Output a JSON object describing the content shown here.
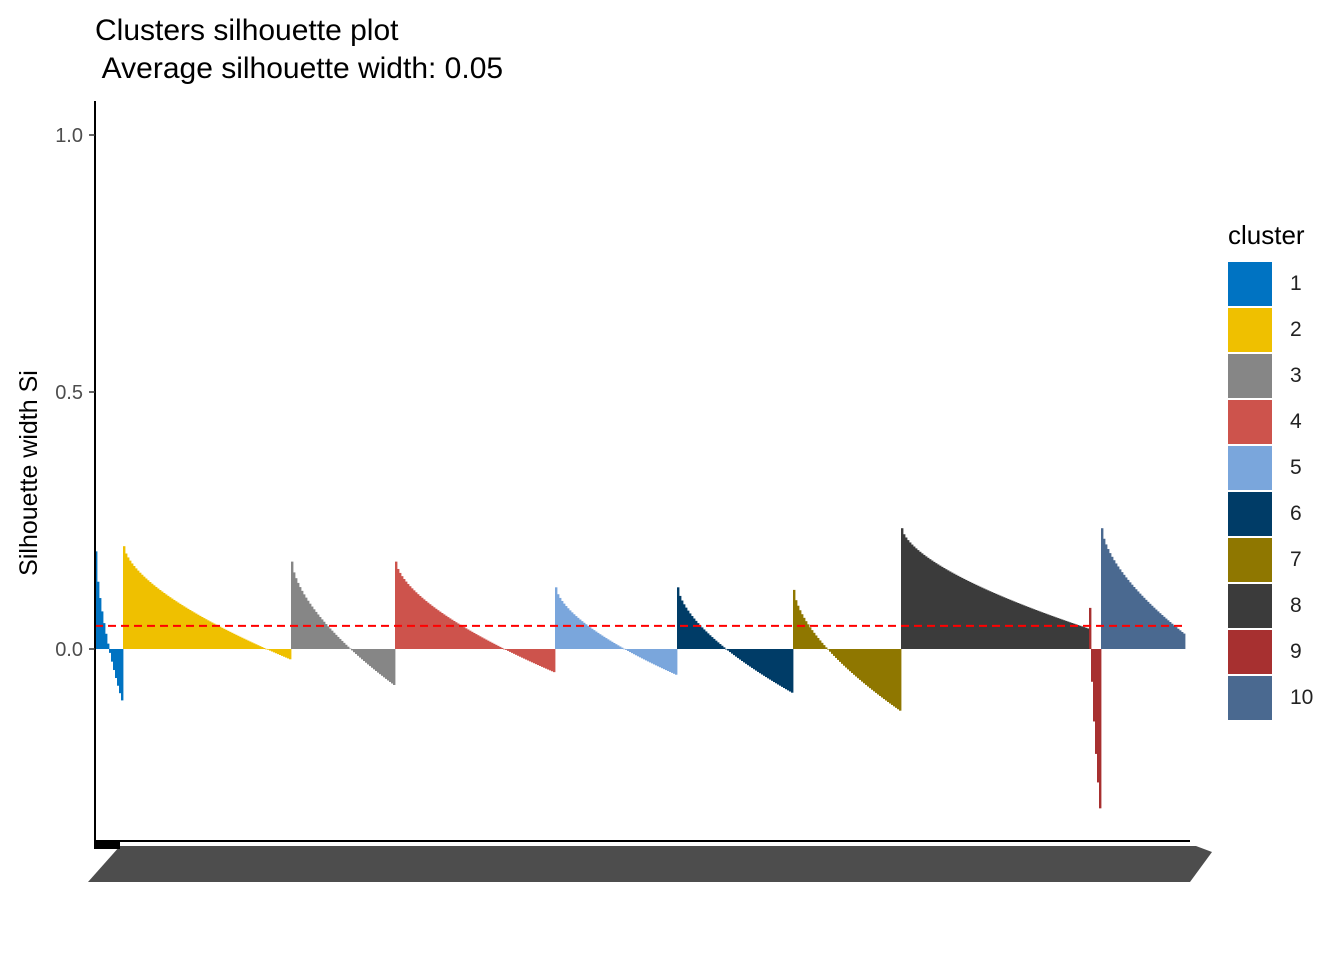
{
  "chart_data": {
    "type": "bar",
    "title": "Clusters silhouette plot",
    "subtitle": " Average silhouette width: 0.05",
    "ylabel": "Silhouette width Si",
    "xlabel": "",
    "ylim": [
      -0.37,
      1.06
    ],
    "yticks": [
      0.0,
      0.5,
      1.0
    ],
    "ytick_labels": [
      "0.0",
      "0.5",
      "1.0"
    ],
    "average_silhouette_width": 0.05,
    "reference_line": {
      "value": 0.045,
      "color": "#ff0000",
      "style": "dashed"
    },
    "grid": false,
    "legend": {
      "title": "cluster",
      "placement": "right"
    },
    "series": [
      {
        "name": "1",
        "color": "#0073C2",
        "n": 14,
        "max": 0.19,
        "min": -0.1
      },
      {
        "name": "2",
        "color": "#EFC000",
        "n": 84,
        "max": 0.2,
        "min": -0.02
      },
      {
        "name": "3",
        "color": "#868686",
        "n": 52,
        "max": 0.17,
        "min": -0.07
      },
      {
        "name": "4",
        "color": "#CD534C",
        "n": 80,
        "max": 0.17,
        "min": -0.045
      },
      {
        "name": "5",
        "color": "#7AA6DC",
        "n": 61,
        "max": 0.12,
        "min": -0.05
      },
      {
        "name": "6",
        "color": "#003C67",
        "n": 58,
        "max": 0.12,
        "min": -0.085
      },
      {
        "name": "7",
        "color": "#8F7700",
        "n": 54,
        "max": 0.115,
        "min": -0.12
      },
      {
        "name": "8",
        "color": "#3B3B3B",
        "n": 94,
        "max": 0.235,
        "min": 0.04
      },
      {
        "name": "9",
        "color": "#A73030",
        "n": 6,
        "max": 0.08,
        "min": -0.31
      },
      {
        "name": "10",
        "color": "#4A6990",
        "n": 42,
        "max": 0.235,
        "min": 0.03
      }
    ]
  }
}
